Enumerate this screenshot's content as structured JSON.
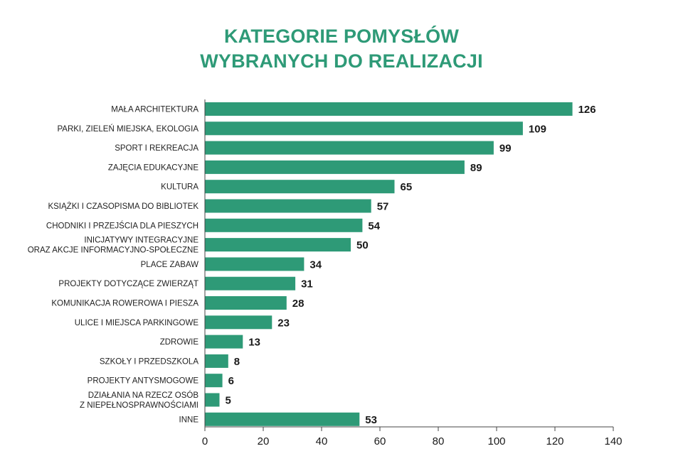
{
  "chart_data": {
    "type": "bar",
    "orientation": "horizontal",
    "title_lines": [
      "KATEGORIE POMYSŁÓW",
      "WYBRANYCH DO REALIZACJI"
    ],
    "categories": [
      [
        "MAŁA ARCHITEKTURA"
      ],
      [
        "PARKI, ZIELEŃ MIEJSKA, EKOLOGIA"
      ],
      [
        "SPORT I REKREACJA"
      ],
      [
        "ZAJĘCIA EDUKACYJNE"
      ],
      [
        "KULTURA"
      ],
      [
        "KSIĄŻKI I CZASOPISMA DO BIBLIOTEK"
      ],
      [
        "CHODNIKI I PRZEJŚCIA DLA PIESZYCH"
      ],
      [
        "INICJATYWY INTEGRACYJNE",
        "ORAZ AKCJE INFORMACYJNO-SPOŁECZNE"
      ],
      [
        "PLACE ZABAW"
      ],
      [
        "PROJEKTY DOTYCZĄCE ZWIERZĄT"
      ],
      [
        "KOMUNIKACJA ROWEROWA I PIESZA"
      ],
      [
        "ULICE I MIEJSCA PARKINGOWE"
      ],
      [
        "ZDROWIE"
      ],
      [
        "SZKOŁY I PRZEDSZKOLA"
      ],
      [
        "PROJEKTY ANTYSMOGOWE"
      ],
      [
        "DZIAŁANIA NA RZECZ OSÓB",
        "Z NIEPEŁNOSPRAWNOŚCIAMI"
      ],
      [
        "INNE"
      ]
    ],
    "values": [
      126,
      109,
      99,
      89,
      65,
      57,
      54,
      50,
      34,
      31,
      28,
      23,
      13,
      8,
      6,
      5,
      53
    ],
    "xlim": [
      0,
      140
    ],
    "xticks": [
      0,
      20,
      40,
      60,
      80,
      100,
      120,
      140
    ],
    "grid": false,
    "legend": "none",
    "data_labels": true,
    "xlabel": "",
    "ylabel": ""
  },
  "colors": {
    "bar": "#2e9a77",
    "title": "#2e9a77",
    "axis": "#444444"
  }
}
